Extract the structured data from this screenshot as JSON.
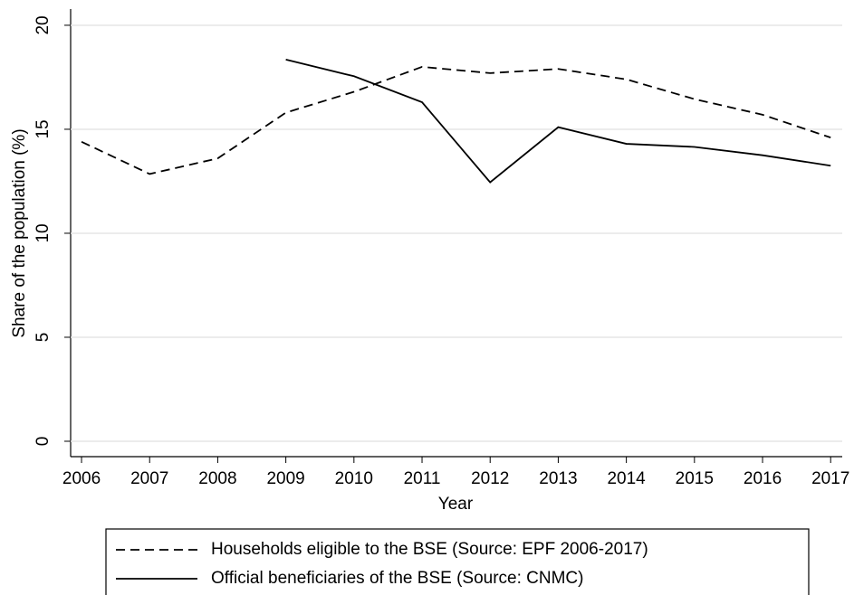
{
  "chart_data": {
    "type": "line",
    "x_label": "Year",
    "y_label": "Share of the population (%)",
    "x": [
      2006,
      2007,
      2008,
      2009,
      2010,
      2011,
      2012,
      2013,
      2014,
      2015,
      2016,
      2017
    ],
    "series": [
      {
        "name": "Households eligible to the BSE (Source: EPF 2006-2017)",
        "color": "#000000",
        "linestyle": "dashed",
        "values": [
          14.4,
          12.85,
          13.6,
          15.8,
          16.8,
          18.0,
          17.7,
          17.9,
          17.4,
          16.45,
          15.7,
          14.6
        ]
      },
      {
        "name": "Official beneficiaries of the BSE (Source: CNMC)",
        "color": "#000000",
        "linestyle": "solid",
        "values": [
          null,
          null,
          null,
          18.35,
          17.55,
          16.3,
          12.45,
          15.1,
          14.3,
          14.15,
          13.75,
          13.25
        ]
      }
    ],
    "xlim": [
      2005.84,
      2017.17
    ],
    "xticks": [
      2006,
      2007,
      2008,
      2009,
      2010,
      2011,
      2012,
      2013,
      2014,
      2015,
      2016,
      2017
    ],
    "ylim": [
      -0.74,
      20.78
    ],
    "yticks": [
      0,
      5,
      10,
      15,
      20
    ],
    "grid": true,
    "legend": "bottom"
  }
}
